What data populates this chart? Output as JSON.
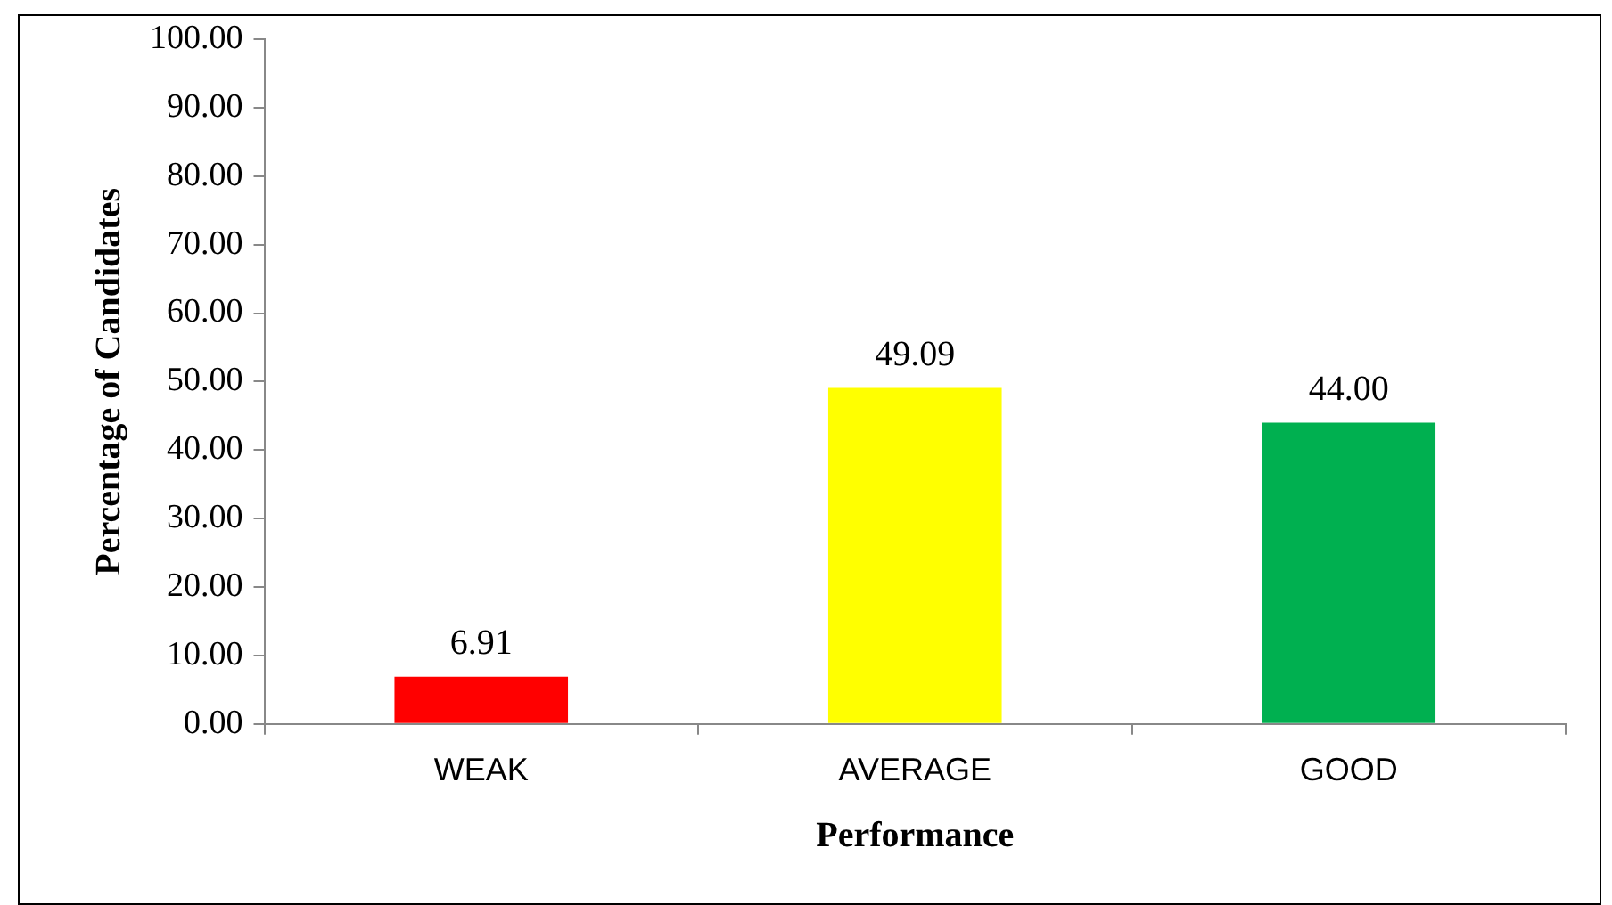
{
  "chart_data": {
    "type": "bar",
    "xlabel": "Performance",
    "ylabel": "Percentage of Candidates",
    "categories": [
      "WEAK",
      "AVERAGE",
      "GOOD"
    ],
    "values": [
      6.91,
      49.09,
      44.0
    ],
    "colors": [
      "#ff0000",
      "#ffff00",
      "#00b050"
    ],
    "value_labels": [
      "6.91",
      "49.09",
      "44.00"
    ],
    "ylim": [
      0,
      100
    ],
    "yticks": [
      {
        "value": 0,
        "label": "0.00"
      },
      {
        "value": 10,
        "label": "10.00"
      },
      {
        "value": 20,
        "label": "20.00"
      },
      {
        "value": 30,
        "label": "30.00"
      },
      {
        "value": 40,
        "label": "40.00"
      },
      {
        "value": 50,
        "label": "50.00"
      },
      {
        "value": 60,
        "label": "60.00"
      },
      {
        "value": 70,
        "label": "70.00"
      },
      {
        "value": 80,
        "label": "80.00"
      },
      {
        "value": 90,
        "label": "90.00"
      },
      {
        "value": 100,
        "label": "100.00"
      }
    ],
    "grid": false,
    "legend": false
  }
}
